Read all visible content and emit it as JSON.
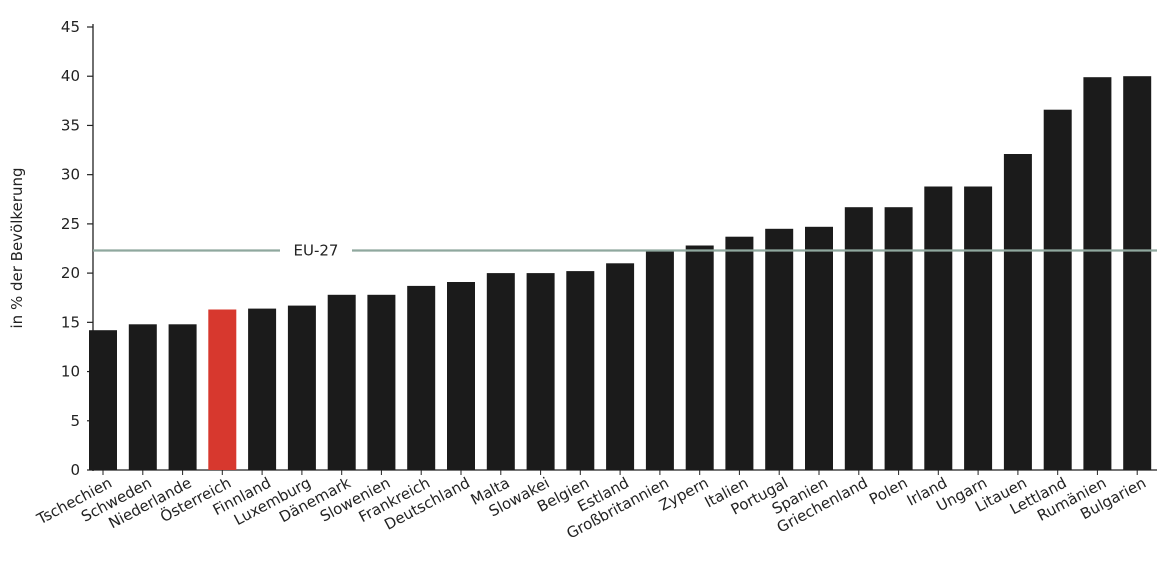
{
  "chart_data": {
    "type": "bar",
    "title": "",
    "xlabel": "",
    "ylabel": "in % der Bevölkerung",
    "ylim": [
      0,
      45
    ],
    "yticks": [
      0,
      5,
      10,
      15,
      20,
      25,
      30,
      35,
      40,
      45
    ],
    "grid": false,
    "categories": [
      "Tschechien",
      "Schweden",
      "Niederlande",
      "Österreich",
      "Finnland",
      "Luxemburg",
      "Dänemark",
      "Slowenien",
      "Frankreich",
      "Deutschland",
      "Malta",
      "Slowakei",
      "Belgien",
      "Estland",
      "Großbritannien",
      "Zypern",
      "Italien",
      "Portugal",
      "Spanien",
      "Griechenland",
      "Polen",
      "Irland",
      "Ungarn",
      "Litauen",
      "Lettland",
      "Rumänien",
      "Bulgarien"
    ],
    "values": [
      14.2,
      14.8,
      14.8,
      16.3,
      16.4,
      16.7,
      17.8,
      17.8,
      18.7,
      19.1,
      20.0,
      20.0,
      20.2,
      21.0,
      22.2,
      22.8,
      23.7,
      24.5,
      24.7,
      26.7,
      26.7,
      28.8,
      28.8,
      32.1,
      36.6,
      39.9,
      40.0
    ],
    "highlight": {
      "category": "Österreich",
      "color": "#d7382e"
    },
    "bar_color": "#1b1b1b",
    "reference_line": {
      "label": "EU-27",
      "value": 22.3,
      "color": "#8fa89e"
    }
  }
}
